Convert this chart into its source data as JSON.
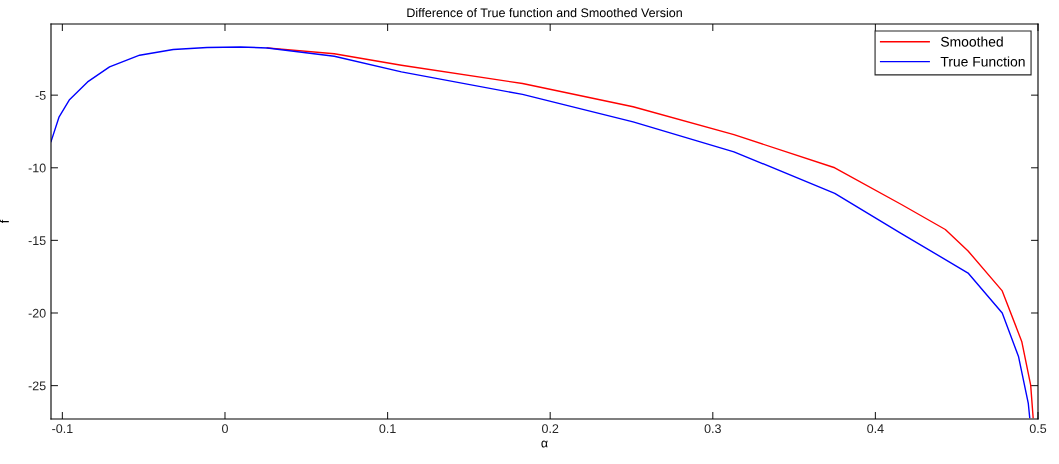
{
  "chart_data": {
    "type": "line",
    "title": "Difference of True function and Smoothed Version",
    "xlabel": "α",
    "ylabel": "f",
    "xlim": [
      -0.107,
      0.5
    ],
    "ylim": [
      -27.3,
      -0.1
    ],
    "xticks": [
      -0.1,
      0,
      0.1,
      0.2,
      0.3,
      0.4,
      0.5
    ],
    "yticks": [
      -25,
      -20,
      -15,
      -10,
      -5
    ],
    "grid": false,
    "legend": "top right",
    "marker": "none",
    "line_style": "solid",
    "series": [
      {
        "name": "Smoothed",
        "color": "#ff0000",
        "x": [
          0.026,
          0.0672,
          0.1085,
          0.183,
          0.251,
          0.313,
          0.375,
          0.416,
          0.443,
          0.457,
          0.478,
          0.49,
          0.4955,
          0.497
        ],
        "values": [
          -1.75,
          -2.15,
          -2.94,
          -4.2,
          -5.8,
          -7.72,
          -10.0,
          -12.53,
          -14.25,
          -15.73,
          -18.48,
          -21.96,
          -24.97,
          -27.2
        ]
      },
      {
        "name": "True Function",
        "color": "#0000ff",
        "x": [
          -0.107,
          -0.102,
          -0.0958,
          -0.0845,
          -0.071,
          -0.0525,
          -0.0318,
          -0.011,
          0.0095,
          0.026,
          0.0672,
          0.1085,
          0.183,
          0.251,
          0.313,
          0.375,
          0.416,
          0.457,
          0.478,
          0.488,
          0.494,
          0.4949
        ],
        "values": [
          -8.2,
          -6.49,
          -5.34,
          -4.09,
          -3.05,
          -2.25,
          -1.86,
          -1.72,
          -1.68,
          -1.75,
          -2.32,
          -3.4,
          -4.95,
          -6.84,
          -8.9,
          -11.76,
          -14.53,
          -17.25,
          -20.0,
          -22.99,
          -26.2,
          -27.2
        ]
      }
    ]
  }
}
